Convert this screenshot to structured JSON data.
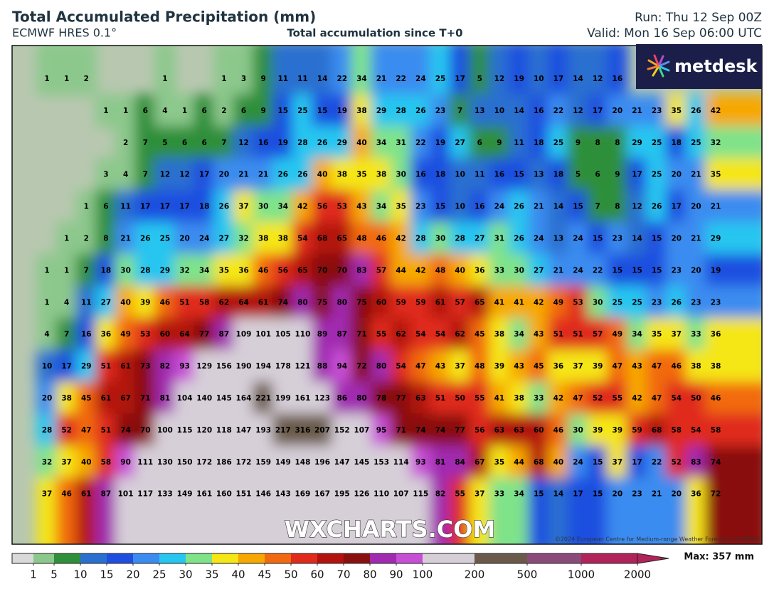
{
  "header": {
    "title": "Total Accumulated Precipitation (mm)",
    "model": "ECMWF HRES 0.1°",
    "subtitle": "Total accumulation since T+0",
    "run": "Run: Thu 12 Sep 00Z",
    "valid": "Valid: Mon 16 Sep 06:00 UTC"
  },
  "logo": "metdesk",
  "watermark": "WXCHARTS.COM",
  "copyright": "©2024 European Centre for Medium-range Weather Forecasts (ECMWF)",
  "grid": {
    "rows": [
      [
        1,
        1,
        2,
        null,
        null,
        null,
        1,
        null,
        null,
        1,
        3,
        9,
        11,
        11,
        14,
        22,
        34,
        21,
        22,
        24,
        25,
        17,
        5,
        12,
        19,
        10,
        17,
        14,
        12,
        16,
        null,
        null,
        null,
        null,
        null
      ],
      [
        null,
        null,
        null,
        1,
        1,
        6,
        4,
        1,
        6,
        2,
        6,
        9,
        15,
        25,
        15,
        19,
        38,
        29,
        28,
        26,
        23,
        7,
        13,
        10,
        14,
        16,
        22,
        12,
        17,
        20,
        21,
        23,
        35,
        26,
        42
      ],
      [
        null,
        null,
        null,
        null,
        2,
        7,
        5,
        6,
        6,
        7,
        12,
        16,
        19,
        28,
        26,
        29,
        40,
        34,
        31,
        22,
        19,
        27,
        6,
        9,
        11,
        18,
        25,
        9,
        8,
        8,
        29,
        25,
        18,
        25,
        32
      ],
      [
        null,
        null,
        null,
        3,
        4,
        7,
        12,
        12,
        17,
        20,
        21,
        21,
        26,
        26,
        40,
        38,
        35,
        38,
        30,
        16,
        18,
        10,
        11,
        16,
        15,
        13,
        18,
        5,
        6,
        9,
        17,
        25,
        20,
        21,
        35
      ],
      [
        null,
        null,
        1,
        6,
        11,
        17,
        17,
        17,
        18,
        26,
        37,
        30,
        34,
        42,
        56,
        53,
        43,
        34,
        35,
        23,
        15,
        10,
        16,
        24,
        26,
        21,
        14,
        15,
        7,
        8,
        12,
        26,
        17,
        20,
        21
      ],
      [
        null,
        1,
        2,
        8,
        21,
        26,
        25,
        20,
        24,
        27,
        32,
        38,
        38,
        54,
        68,
        65,
        48,
        46,
        42,
        28,
        30,
        28,
        27,
        31,
        26,
        24,
        13,
        24,
        15,
        23,
        14,
        15,
        20,
        21,
        29
      ],
      [
        1,
        1,
        7,
        18,
        30,
        28,
        29,
        32,
        34,
        35,
        36,
        46,
        56,
        65,
        70,
        70,
        83,
        57,
        44,
        42,
        48,
        40,
        36,
        33,
        30,
        27,
        21,
        24,
        22,
        15,
        15,
        15,
        23,
        20,
        19
      ],
      [
        1,
        4,
        11,
        27,
        40,
        39,
        46,
        51,
        58,
        62,
        64,
        61,
        74,
        80,
        75,
        80,
        75,
        60,
        59,
        59,
        61,
        57,
        65,
        41,
        41,
        42,
        49,
        53,
        30,
        25,
        25,
        23,
        26,
        23,
        23
      ],
      [
        4,
        7,
        16,
        36,
        49,
        53,
        60,
        64,
        77,
        87,
        109,
        101,
        105,
        110,
        89,
        87,
        71,
        55,
        62,
        54,
        54,
        62,
        45,
        38,
        34,
        43,
        51,
        51,
        57,
        49,
        34,
        35,
        37,
        33,
        36
      ],
      [
        10,
        17,
        29,
        51,
        61,
        73,
        82,
        93,
        129,
        156,
        190,
        194,
        178,
        121,
        88,
        94,
        72,
        80,
        54,
        47,
        43,
        37,
        48,
        39,
        43,
        45,
        36,
        37,
        39,
        47,
        43,
        47,
        46,
        38,
        38
      ],
      [
        20,
        38,
        45,
        61,
        67,
        71,
        81,
        104,
        140,
        145,
        164,
        221,
        199,
        161,
        123,
        86,
        80,
        78,
        77,
        63,
        51,
        50,
        55,
        41,
        38,
        33,
        42,
        47,
        52,
        55,
        42,
        47,
        54,
        50,
        46
      ],
      [
        28,
        52,
        47,
        51,
        74,
        70,
        100,
        115,
        120,
        118,
        147,
        193,
        217,
        316,
        207,
        152,
        107,
        95,
        71,
        74,
        74,
        77,
        56,
        63,
        63,
        60,
        46,
        30,
        39,
        39,
        59,
        68,
        58,
        54,
        58
      ],
      [
        32,
        37,
        40,
        58,
        90,
        111,
        130,
        150,
        172,
        186,
        172,
        159,
        149,
        148,
        196,
        147,
        145,
        153,
        114,
        93,
        81,
        84,
        67,
        35,
        44,
        68,
        40,
        24,
        15,
        37,
        17,
        22,
        52,
        83,
        74
      ],
      [
        37,
        46,
        61,
        87,
        101,
        117,
        133,
        149,
        161,
        160,
        151,
        146,
        143,
        169,
        167,
        195,
        126,
        110,
        107,
        115,
        82,
        55,
        37,
        33,
        34,
        15,
        14,
        17,
        15,
        20,
        23,
        21,
        20,
        36,
        72
      ]
    ]
  },
  "colorbar": {
    "ticks": [
      1,
      5,
      10,
      15,
      20,
      25,
      30,
      35,
      40,
      45,
      50,
      60,
      70,
      80,
      90,
      100,
      200,
      500,
      1000,
      2000
    ],
    "colors": [
      "#8cc88c",
      "#2f8f3a",
      "#2a70d0",
      "#1f4fe0",
      "#3a8cf0",
      "#27c6f0",
      "#7fe38a",
      "#f5e614",
      "#f7a800",
      "#f26a10",
      "#e02a1a",
      "#b3120f",
      "#8a1010",
      "#a02ab0",
      "#c74fd6",
      "#d6cfd8",
      "#6b5a4a",
      "#8a4a7a",
      "#b0245a"
    ],
    "below": "#d9d9d9",
    "max": "Max: 357 mm"
  }
}
